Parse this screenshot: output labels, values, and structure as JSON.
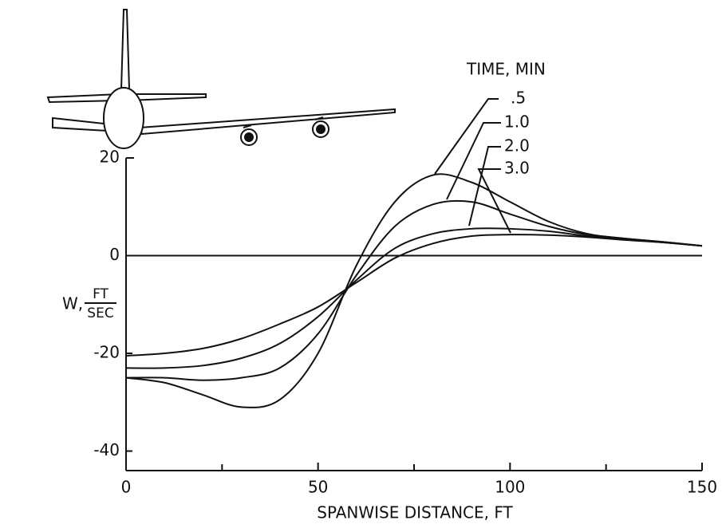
{
  "chart_data": {
    "type": "line",
    "legend_title": "TIME, MIN",
    "x_label": "SPANWISE DISTANCE, FT",
    "y_label": "W,",
    "y_label_numerator": "FT",
    "y_label_denominator": "SEC",
    "x": [
      0,
      10,
      20,
      30,
      40,
      50,
      60,
      70,
      80,
      90,
      100,
      110,
      120,
      130,
      140,
      150
    ],
    "series": [
      {
        "name": ".5",
        "color": "#111111",
        "values": [
          -25,
          -26,
          -28.5,
          -31,
          -29.5,
          -20,
          -2,
          11,
          16.5,
          15,
          11,
          7,
          4.5,
          3.5,
          2.8,
          2
        ]
      },
      {
        "name": "1.0",
        "color": "#111111",
        "values": [
          -25,
          -25,
          -25.5,
          -25,
          -23,
          -16,
          -4,
          6,
          10.5,
          11,
          8.5,
          6,
          4.3,
          3.5,
          2.8,
          2
        ]
      },
      {
        "name": "2.0",
        "color": "#111111",
        "values": [
          -23,
          -23,
          -22.5,
          -21,
          -18,
          -12.5,
          -5,
          1.5,
          4.5,
          5.5,
          5.5,
          5,
          4,
          3.3,
          2.7,
          2
        ]
      },
      {
        "name": "3.0",
        "color": "#111111",
        "values": [
          -20.5,
          -20,
          -19,
          -17,
          -14,
          -10.5,
          -5.5,
          -0.5,
          2.5,
          4,
          4.3,
          4.2,
          3.8,
          3.2,
          2.7,
          2
        ]
      }
    ],
    "xlim": [
      0,
      150
    ],
    "xticks": [
      0,
      50,
      100,
      150
    ],
    "xminor": [
      25,
      75,
      125
    ],
    "ylim": [
      -44,
      20
    ],
    "yticks": [
      20,
      0,
      -20,
      -40
    ]
  }
}
